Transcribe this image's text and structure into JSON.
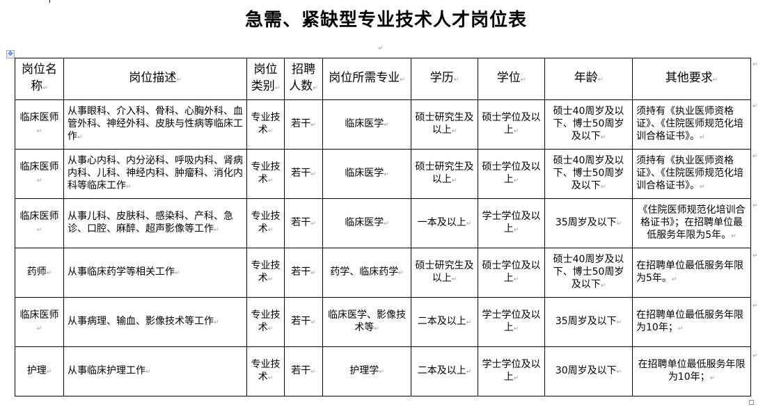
{
  "title": "急需、紧缺型专业技术人才岗位表",
  "headers": [
    "岗位名称",
    "岗位描述",
    "岗位类别",
    "招聘人数",
    "岗位所需专业",
    "学历",
    "学位",
    "年龄",
    "其他要求"
  ],
  "rows": [
    {
      "name": "临床医师",
      "desc": "从事眼科、介入科、骨科、心胸外科、血管外科、神经外科、皮肤与性病等临床工作",
      "category": "专业技术",
      "count": "若干",
      "major": "临床医学",
      "education": "硕士研究生及以上",
      "degree": "硕士学位及以上",
      "age": "硕士40周岁及以下、博士50周岁及以下",
      "other": "须持有《执业医师资格证》、《住院医师规范化培训合格证书》。"
    },
    {
      "name": "临床医师",
      "desc": "从事心内科、内分泌科、呼吸内科、肾病内科、儿科、神经内科、肿瘤科、消化内科等临床工作",
      "category": "专业技术",
      "count": "若干",
      "major": "临床医学",
      "education": "硕士研究生及以上",
      "degree": "硕士学位及以上",
      "age": "硕士40周岁及以下、博士50周岁及以下",
      "other": "须持有《执业医师资格证》、《住院医师规范化培训合格证书》。"
    },
    {
      "name": "临床医师",
      "desc": "从事儿科、皮肤科、感染科、产科、急诊、口腔、麻醉、超声影像等工作",
      "category": "专业技术",
      "count": "若干",
      "major": "临床医学",
      "education": "一本及以上",
      "degree": "学士学位及以上",
      "age": "35周岁及以下",
      "other": "《住院医师规范化培训合格证书》；在招聘单位最低服务年限为5年。"
    },
    {
      "name": "药师",
      "desc": "从事临床药学等相关工作",
      "category": "专业技术",
      "count": "若干",
      "major": "药学、临床药学",
      "education": "硕士研究生及以上",
      "degree": "硕士学位及以上",
      "age": "硕士40周岁及以下、博士50周岁及以下",
      "other": "在招聘单位最低服务年限为5年。"
    },
    {
      "name": "临床医师",
      "desc": "从事病理、输血、影像技术等工作",
      "category": "专业技术",
      "count": "若干",
      "major": "临床医学、影像技术等",
      "education": "二本及以上",
      "degree": "学士学位及以上",
      "age": "35周岁及以下",
      "other": "在招聘单位最低服务年限为10年；"
    },
    {
      "name": "护理",
      "desc": "从事临床护理工作",
      "category": "专业技术",
      "count": "若干",
      "major": "护理学",
      "education": "二本及以上",
      "degree": "学士学位及以上",
      "age": "30周岁及以下",
      "other": "在招聘单位最低服务年限为10年；"
    }
  ]
}
